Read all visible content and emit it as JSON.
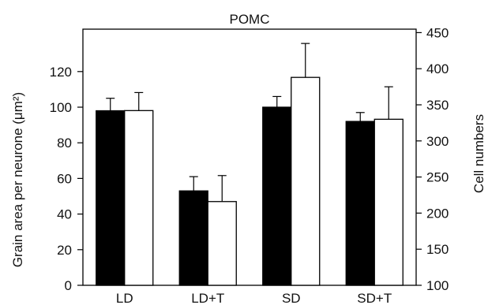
{
  "chart_data": {
    "type": "bar",
    "title": "POMC",
    "categories": [
      "LD",
      "LD+T",
      "SD",
      "SD+T"
    ],
    "ylabel_left": "Grain area per neurone (μm²)",
    "ylabel_right": "Cell numbers",
    "ylim_left": [
      0,
      140
    ],
    "ylim_right": [
      100,
      455
    ],
    "yticks_left": [
      0,
      20,
      40,
      60,
      80,
      100,
      120
    ],
    "yticks_right": [
      100,
      150,
      200,
      250,
      300,
      350,
      400,
      450
    ],
    "series": [
      {
        "axis": "left",
        "color": "#000000",
        "values": [
          98,
          53,
          100,
          92
        ],
        "errors": [
          7,
          8,
          6,
          5
        ]
      },
      {
        "axis": "right",
        "color": "#ffffff",
        "values": [
          342,
          216,
          388,
          330
        ],
        "errors": [
          25,
          36,
          47,
          45
        ]
      }
    ]
  }
}
